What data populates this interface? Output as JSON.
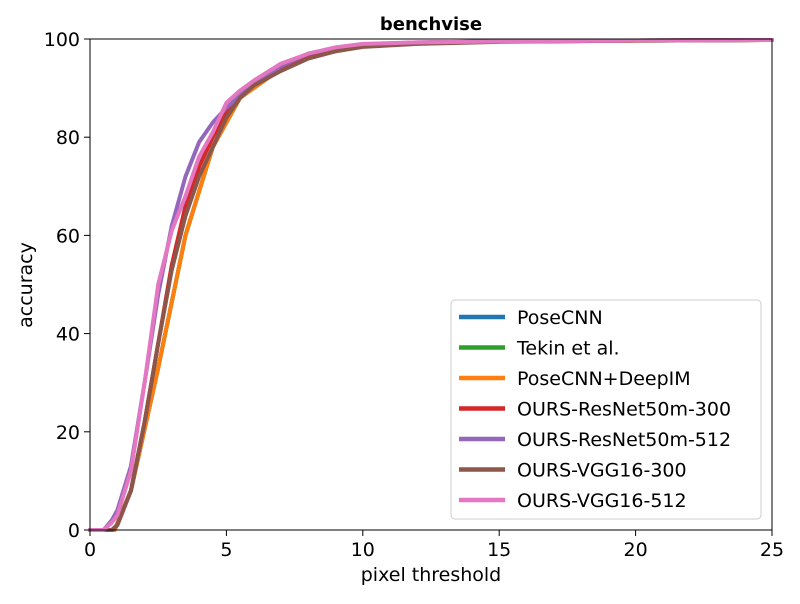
{
  "chart_data": {
    "type": "line",
    "title": "benchvise",
    "xlabel": "pixel threshold",
    "ylabel": "accuracy",
    "xlim": [
      0,
      25
    ],
    "ylim": [
      0,
      100
    ],
    "xticks": [
      0,
      5,
      10,
      15,
      20,
      25
    ],
    "yticks": [
      0,
      20,
      40,
      60,
      80,
      100
    ],
    "grid": false,
    "legend_position": "lower-right",
    "series": [
      {
        "name": "PoseCNN",
        "color": "#1f77b4",
        "x": [
          0.9,
          1.5,
          2.5,
          3.5,
          4.5,
          5.5,
          7.0,
          8.0,
          10.0,
          12.5,
          15.0,
          25.0
        ],
        "y": [
          0,
          8,
          33,
          60,
          78,
          88,
          94,
          97,
          98.8,
          99.3,
          99.5,
          99.8
        ]
      },
      {
        "name": "Tekin et al.",
        "color": "#2ca02c",
        "x": [
          0.9,
          1.5,
          2.5,
          3.5,
          4.5,
          5.5,
          7.0,
          8.0,
          10.0,
          12.5,
          15.0,
          25.0
        ],
        "y": [
          0,
          8,
          33,
          60,
          78,
          88,
          94,
          97,
          98.8,
          99.3,
          99.5,
          99.8
        ]
      },
      {
        "name": "PoseCNN+DeepIM",
        "color": "#ff7f0e",
        "x": [
          0.9,
          1.5,
          2.5,
          3.5,
          4.5,
          5.5,
          7.0,
          8.0,
          10.0,
          12.5,
          15.0,
          25.0
        ],
        "y": [
          0,
          8,
          33,
          60,
          78,
          88,
          94,
          97,
          98.8,
          99.3,
          99.5,
          99.8
        ]
      },
      {
        "name": "OURS-ResNet50m-300",
        "color": "#d62728",
        "x": [
          0.8,
          1.0,
          1.5,
          2.0,
          2.5,
          3.0,
          3.5,
          4.0,
          4.5,
          5.0,
          5.5,
          6.0,
          7.0,
          8.0,
          9.0,
          10.0,
          12.0,
          15.0,
          20.0,
          25.0
        ],
        "y": [
          0,
          1,
          8,
          22,
          38,
          54,
          66,
          74,
          80,
          85,
          88,
          91,
          94,
          96.5,
          97.5,
          98.5,
          99.2,
          99.5,
          99.7,
          99.8
        ]
      },
      {
        "name": "OURS-ResNet50m-512",
        "color": "#9467bd",
        "x": [
          0.5,
          0.8,
          1.0,
          1.5,
          2.0,
          2.5,
          3.0,
          3.5,
          4.0,
          4.5,
          5.0,
          5.5,
          6.0,
          7.0,
          8.0,
          9.0,
          10.0,
          12.0,
          15.0,
          20.0,
          25.0
        ],
        "y": [
          0,
          2,
          4,
          13,
          30,
          48,
          62,
          72,
          79,
          83,
          86,
          88.5,
          91,
          94.5,
          97,
          98.2,
          98.9,
          99.3,
          99.5,
          99.7,
          99.8
        ]
      },
      {
        "name": "OURS-VGG16-300",
        "color": "#8c564b",
        "x": [
          0.8,
          1.0,
          1.5,
          2.0,
          2.5,
          3.0,
          3.5,
          4.0,
          4.5,
          5.0,
          5.5,
          6.0,
          7.0,
          8.0,
          9.0,
          10.0,
          12.0,
          15.0,
          20.0,
          25.0
        ],
        "y": [
          0,
          1,
          8,
          22,
          38,
          53,
          64,
          72,
          78,
          84,
          88,
          90.5,
          93.5,
          96,
          97.5,
          98.4,
          99,
          99.4,
          99.7,
          99.8
        ]
      },
      {
        "name": "OURS-VGG16-512",
        "color": "#e377c2",
        "x": [
          0.5,
          0.8,
          1.0,
          1.5,
          2.0,
          2.5,
          3.0,
          3.5,
          4.0,
          4.5,
          5.0,
          5.5,
          6.0,
          7.0,
          8.0,
          9.0,
          10.0,
          12.0,
          15.0,
          20.0,
          25.0
        ],
        "y": [
          0,
          1.5,
          3,
          12,
          30,
          50,
          61,
          68,
          76,
          81,
          87,
          89.5,
          91.5,
          95,
          97,
          98.3,
          99,
          99.3,
          99.5,
          99.7,
          99.8
        ]
      }
    ]
  }
}
